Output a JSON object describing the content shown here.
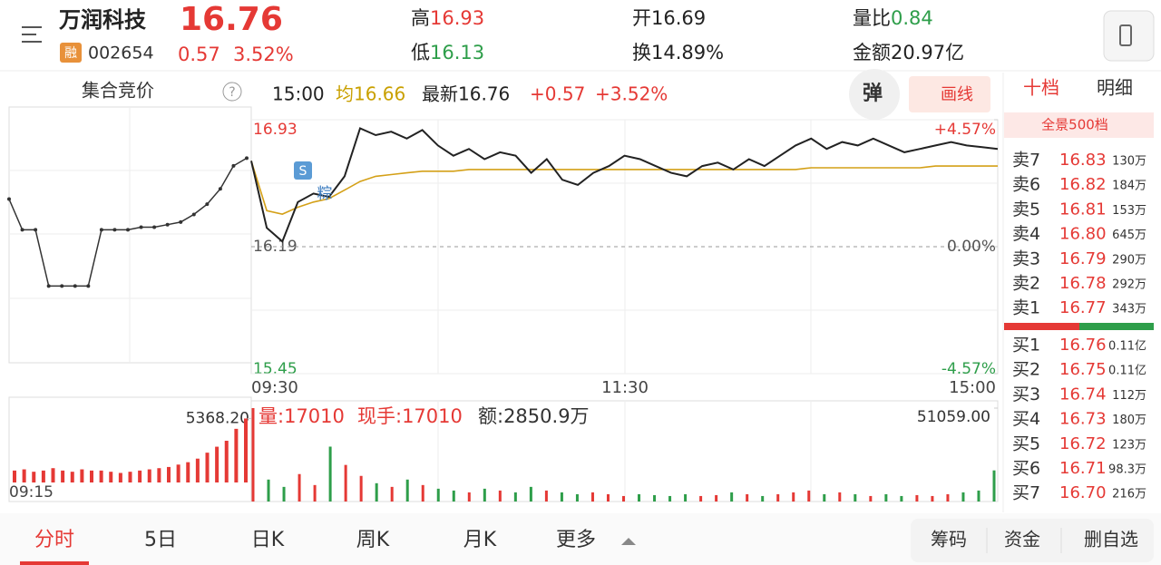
{
  "header": {
    "name": "万润科技",
    "price": "16.76",
    "badge": "融",
    "code": "002654",
    "change": "0.57",
    "change_pct": "3.52%",
    "stats": [
      {
        "label": "高",
        "value": "16.93"
      },
      {
        "label": "低",
        "value": "16.13"
      },
      {
        "label": "开",
        "value": "16.69"
      },
      {
        "label": "换",
        "value": "14.89%"
      },
      {
        "label": "量比",
        "value": "0.84"
      },
      {
        "label": "金额",
        "value": "20.97亿"
      }
    ]
  },
  "toolbar": {
    "auction": "集合竞价",
    "help": "?",
    "time": "15:00",
    "avg": "均16.66",
    "latest": "最新16.76",
    "change": "+0.57",
    "change_pct": "+3.52%",
    "popup": "弹",
    "draw": "画线"
  },
  "chart_data": [
    {
      "type": "line",
      "ylim": [
        15.45,
        16.93
      ],
      "yticks": [
        15.45,
        16.19,
        16.93
      ],
      "y2lim": [
        -4.57,
        4.57
      ],
      "y2ticks": [
        {
          "value": -4.57,
          "label": "-4.57%"
        },
        {
          "value": 0,
          "label": "0.00%"
        },
        {
          "value": 4.57,
          "label": "+4.57%"
        }
      ],
      "x_labels": [
        "09:30",
        "11:30",
        "15:00"
      ],
      "annotations": [
        "S",
        "粽"
      ],
      "series": [
        {
          "color": "#222222",
          "values": [
            16.69,
            16.3,
            16.22,
            16.45,
            16.5,
            16.48,
            16.6,
            16.88,
            16.84,
            16.86,
            16.82,
            16.87,
            16.78,
            16.72,
            16.76,
            16.7,
            16.74,
            16.72,
            16.62,
            16.7,
            16.58,
            16.55,
            16.62,
            16.66,
            16.72,
            16.7,
            16.66,
            16.62,
            16.6,
            16.66,
            16.68,
            16.64,
            16.7,
            16.66,
            16.72,
            16.78,
            16.82,
            16.76,
            16.8,
            16.78,
            16.82,
            16.78,
            16.74,
            16.76,
            16.78,
            16.8,
            16.78,
            16.77,
            16.76
          ]
        },
        {
          "color": "#d4a017",
          "values": [
            16.69,
            16.4,
            16.38,
            16.42,
            16.45,
            16.47,
            16.52,
            16.57,
            16.6,
            16.61,
            16.62,
            16.63,
            16.63,
            16.63,
            16.64,
            16.64,
            16.64,
            16.64,
            16.64,
            16.64,
            16.64,
            16.64,
            16.64,
            16.64,
            16.64,
            16.64,
            16.64,
            16.64,
            16.64,
            16.64,
            16.64,
            16.64,
            16.64,
            16.64,
            16.64,
            16.64,
            16.65,
            16.65,
            16.65,
            16.65,
            16.65,
            16.65,
            16.65,
            16.65,
            16.66,
            16.66,
            16.66,
            16.66,
            16.66
          ]
        }
      ]
    },
    {
      "type": "bar",
      "info": [
        "量:17010",
        "现手:17010",
        "额:2850.9万"
      ],
      "ylim": [
        0,
        51059
      ],
      "yticks": [
        {
          "value": 51059,
          "label": "51059.00"
        }
      ],
      "up_color": "#e53935",
      "down_color": "#2e9e4a",
      "values": [
        51059,
        12000,
        8000,
        15000,
        9000,
        30000,
        20000,
        14000,
        10000,
        8000,
        12000,
        9000,
        7000,
        6000,
        5000,
        7000,
        6000,
        5000,
        8000,
        6000,
        5000,
        4000,
        5000,
        4000,
        3000,
        4000,
        3500,
        3000,
        4000,
        3000,
        3500,
        5000,
        4000,
        3000,
        4000,
        5000,
        6000,
        4000,
        5000,
        4000,
        3000,
        4000,
        3000,
        3500,
        3000,
        4000,
        5000,
        6000,
        17010
      ]
    },
    {
      "type": "line",
      "ylim": [
        15.9,
        16.9
      ],
      "color": "#333333",
      "values": [
        16.54,
        16.42,
        16.42,
        16.2,
        16.2,
        16.2,
        16.2,
        16.42,
        16.42,
        16.42,
        16.43,
        16.43,
        16.44,
        16.45,
        16.48,
        16.52,
        16.58,
        16.67,
        16.7
      ]
    },
    {
      "type": "bar",
      "ylim": [
        0,
        7000
      ],
      "yticks": [
        {
          "value": 5368.2,
          "label": "5368.20"
        }
      ],
      "x_labels": [
        "09:15"
      ],
      "color": "#e53935",
      "values": [
        1000,
        1100,
        900,
        1000,
        1200,
        1000,
        900,
        1100,
        1000,
        1000,
        900,
        800,
        900,
        1000,
        1100,
        1200,
        1300,
        1500,
        1700,
        2000,
        2500,
        3000,
        3500,
        4500,
        5368.2
      ]
    }
  ],
  "book": {
    "tabs": [
      "十档",
      "明细"
    ],
    "panorama": "全景500档",
    "asks": [
      {
        "label": "卖7",
        "price": "16.83",
        "volume": "130万"
      },
      {
        "label": "卖6",
        "price": "16.82",
        "volume": "184万"
      },
      {
        "label": "卖5",
        "price": "16.81",
        "volume": "153万"
      },
      {
        "label": "卖4",
        "price": "16.80",
        "volume": "645万"
      },
      {
        "label": "卖3",
        "price": "16.79",
        "volume": "290万"
      },
      {
        "label": "卖2",
        "price": "16.78",
        "volume": "292万"
      },
      {
        "label": "卖1",
        "price": "16.77",
        "volume": "343万"
      }
    ],
    "bids": [
      {
        "label": "买1",
        "price": "16.76",
        "volume": "0.11亿"
      },
      {
        "label": "买2",
        "price": "16.75",
        "volume": "0.11亿"
      },
      {
        "label": "买3",
        "price": "16.74",
        "volume": "112万"
      },
      {
        "label": "买4",
        "price": "16.73",
        "volume": "180万"
      },
      {
        "label": "买5",
        "price": "16.72",
        "volume": "123万"
      },
      {
        "label": "买6",
        "price": "16.71",
        "volume": "98.3万"
      },
      {
        "label": "买7",
        "price": "16.70",
        "volume": "216万"
      }
    ]
  },
  "nav": {
    "tabs": [
      "分时",
      "5日",
      "日K",
      "周K",
      "月K",
      "更多"
    ],
    "actions": [
      "筹码",
      "资金",
      "删自选"
    ]
  }
}
